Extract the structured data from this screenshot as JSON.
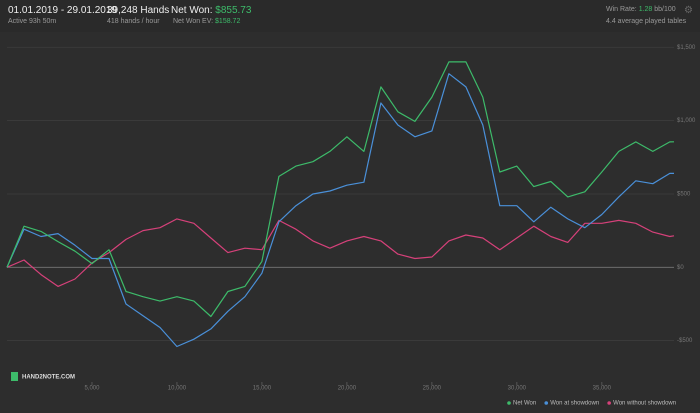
{
  "header": {
    "date_range": "01.01.2019 - 29.01.2019",
    "active_time": "Active 93h 50m",
    "hands": "39,248 Hands",
    "hands_per_hour": "418 hands / hour",
    "net_won_label": "Net Won:",
    "net_won_value": "$855.73",
    "net_won_ev_label": "Net Won  EV:",
    "net_won_ev_value": "$158.72",
    "win_rate_label": "Win Rate:",
    "win_rate_value": "1.28",
    "win_rate_unit": "bb/100",
    "avg_tables": "4.4 average played tables"
  },
  "logo": "HAND2NOTE.COM",
  "chart_data": {
    "type": "line",
    "x": [
      0,
      1000,
      2000,
      3000,
      4000,
      5000,
      6000,
      7000,
      8000,
      9000,
      10000,
      11000,
      12000,
      13000,
      14000,
      15000,
      16000,
      17000,
      18000,
      19000,
      20000,
      21000,
      22000,
      23000,
      24000,
      25000,
      26000,
      27000,
      28000,
      29000,
      30000,
      31000,
      32000,
      33000,
      34000,
      35000,
      36000,
      37000,
      38000,
      39000,
      39248
    ],
    "series": [
      {
        "name": "Net Won",
        "color": "#3dbb6a",
        "values": [
          0,
          280,
          245,
          175,
          110,
          25,
          120,
          -165,
          -200,
          -230,
          -200,
          -230,
          -335,
          -165,
          -130,
          40,
          620,
          690,
          720,
          790,
          890,
          790,
          1230,
          1060,
          995,
          1160,
          1400,
          1400,
          1160,
          650,
          690,
          550,
          585,
          480,
          515,
          650,
          790,
          855,
          790,
          855,
          855.73
        ]
      },
      {
        "name": "Won at showdown",
        "color": "#4a90d9",
        "values": [
          0,
          260,
          210,
          230,
          150,
          60,
          60,
          -250,
          -330,
          -410,
          -540,
          -490,
          -420,
          -300,
          -200,
          -40,
          310,
          420,
          500,
          520,
          560,
          580,
          1120,
          970,
          890,
          930,
          1320,
          1230,
          970,
          420,
          420,
          310,
          410,
          330,
          270,
          360,
          480,
          590,
          570,
          640,
          640
        ]
      },
      {
        "name": "Won without showdown",
        "color": "#d6417a",
        "values": [
          0,
          50,
          -50,
          -130,
          -80,
          30,
          100,
          190,
          250,
          270,
          330,
          300,
          200,
          100,
          130,
          120,
          320,
          260,
          180,
          130,
          180,
          210,
          180,
          90,
          60,
          70,
          180,
          220,
          200,
          120,
          200,
          280,
          210,
          170,
          300,
          300,
          320,
          300,
          240,
          210,
          215
        ]
      }
    ],
    "xlim": [
      0,
      39248
    ],
    "ylim": [
      -700,
      1570
    ],
    "xticks": [
      {
        "value": 5000,
        "label": "5,000"
      },
      {
        "value": 10000,
        "label": "10,000"
      },
      {
        "value": 15000,
        "label": "15,000"
      },
      {
        "value": 20000,
        "label": "20,000"
      },
      {
        "value": 25000,
        "label": "25,000"
      },
      {
        "value": 30000,
        "label": "30,000"
      },
      {
        "value": 35000,
        "label": "35,000"
      }
    ],
    "yticks": [
      {
        "value": -500,
        "label": "-$500"
      },
      {
        "value": 0,
        "label": "$0"
      },
      {
        "value": 500,
        "label": "$500"
      },
      {
        "value": 1000,
        "label": "$1,000"
      },
      {
        "value": 1500,
        "label": "$1,500"
      }
    ],
    "grid": true
  }
}
